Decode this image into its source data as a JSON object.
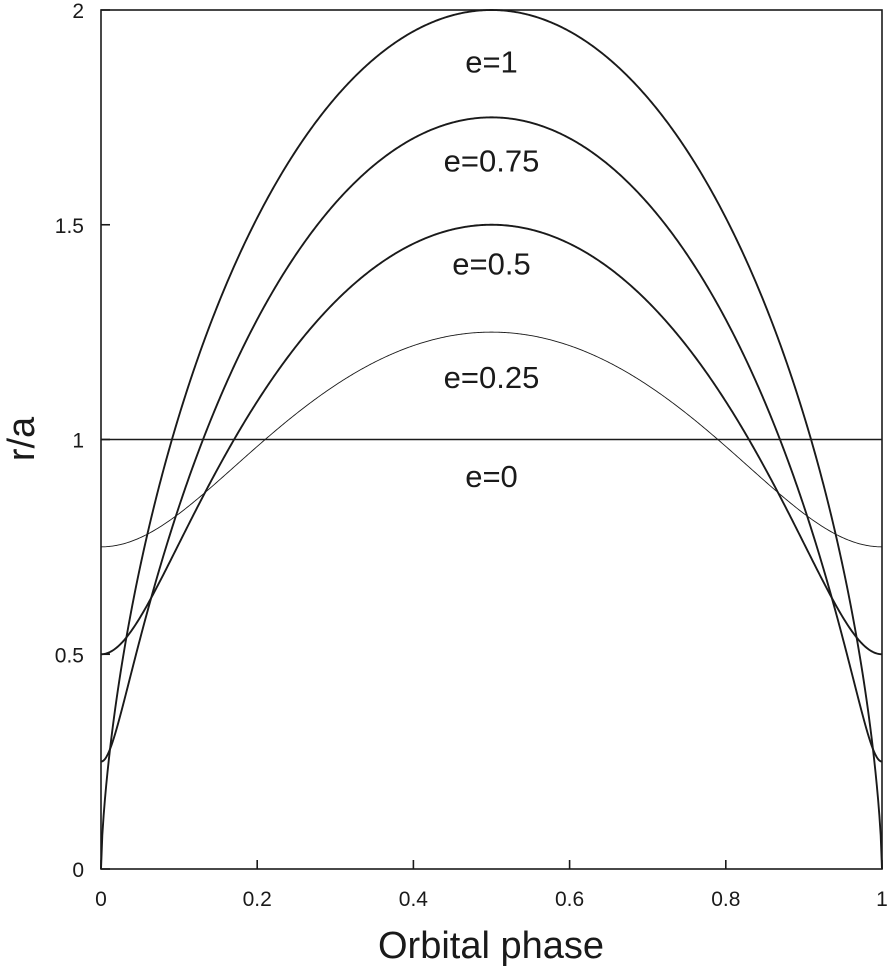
{
  "chart_data": {
    "type": "line",
    "xlabel": "Orbital phase",
    "ylabel": "r/a",
    "xlim": [
      0,
      1
    ],
    "ylim": [
      0,
      2
    ],
    "x_ticks": [
      {
        "value": 0,
        "label": "0"
      },
      {
        "value": 0.2,
        "label": "0.2"
      },
      {
        "value": 0.4,
        "label": "0.4"
      },
      {
        "value": 0.6,
        "label": "0.6"
      },
      {
        "value": 0.8,
        "label": "0.8"
      },
      {
        "value": 1,
        "label": "1"
      }
    ],
    "y_ticks": [
      {
        "value": 0,
        "label": "0"
      },
      {
        "value": 0.5,
        "label": "0.5"
      },
      {
        "value": 1,
        "label": "1"
      },
      {
        "value": 1.5,
        "label": "1.5"
      },
      {
        "value": 2,
        "label": "2"
      }
    ],
    "grid": false,
    "series": [
      {
        "name": "e=0",
        "eccentricity": 0,
        "label_at": {
          "x": 0.5,
          "y": 0.915
        },
        "color": "#1a1a1a",
        "x": [
          0,
          0.1,
          0.2,
          0.3,
          0.4,
          0.5,
          0.6,
          0.7,
          0.8,
          0.9,
          1
        ],
        "y": [
          1,
          1,
          1,
          1,
          1,
          1,
          1,
          1,
          1,
          1,
          1
        ]
      },
      {
        "name": "e=0.25",
        "eccentricity": 0.25,
        "label_at": {
          "x": 0.5,
          "y": 1.145
        },
        "color": "#1a1a1a",
        "x": [
          0,
          0.1,
          0.2,
          0.3,
          0.4,
          0.5,
          0.6,
          0.7,
          0.8,
          0.9,
          1
        ],
        "y": [
          0.75,
          0.84,
          1.02,
          1.16,
          1.23,
          1.25,
          1.23,
          1.16,
          1.02,
          0.84,
          0.75
        ]
      },
      {
        "name": "e=0.5",
        "eccentricity": 0.5,
        "label_at": {
          "x": 0.5,
          "y": 1.41
        },
        "color": "#1a1a1a",
        "x": [
          0,
          0.1,
          0.2,
          0.3,
          0.4,
          0.5,
          0.6,
          0.7,
          0.8,
          0.9,
          1
        ],
        "y": [
          0.5,
          0.86,
          1.12,
          1.32,
          1.45,
          1.5,
          1.45,
          1.32,
          1.12,
          0.86,
          0.5
        ]
      },
      {
        "name": "e=0.75",
        "eccentricity": 0.75,
        "label_at": {
          "x": 0.5,
          "y": 1.65
        },
        "color": "#1a1a1a",
        "x": [
          0,
          0.1,
          0.2,
          0.3,
          0.4,
          0.5,
          0.6,
          0.7,
          0.8,
          0.9,
          1
        ],
        "y": [
          0.25,
          0.95,
          1.25,
          1.52,
          1.69,
          1.75,
          1.69,
          1.52,
          1.25,
          0.95,
          0.25
        ]
      },
      {
        "name": "e=1",
        "eccentricity": 1,
        "label_at": {
          "x": 0.5,
          "y": 1.88
        },
        "color": "#1a1a1a",
        "x": [
          0,
          0.1,
          0.2,
          0.3,
          0.4,
          0.5,
          0.6,
          0.7,
          0.8,
          0.9,
          1
        ],
        "y": [
          0,
          1.02,
          1.38,
          1.7,
          1.92,
          2.0,
          1.92,
          1.7,
          1.38,
          1.02,
          0
        ]
      }
    ]
  }
}
